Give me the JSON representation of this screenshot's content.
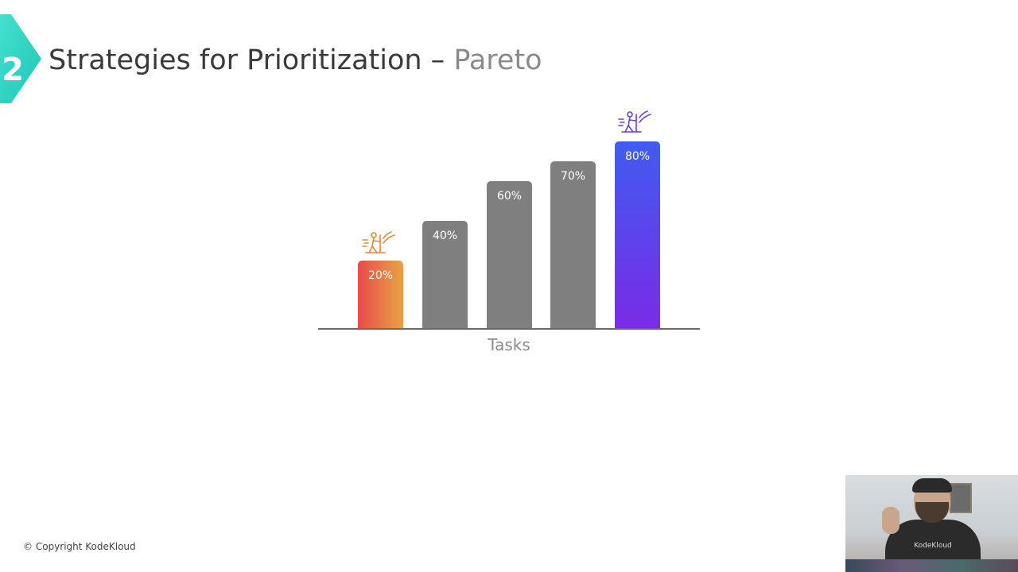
{
  "slide": {
    "section_number": "2",
    "title_main": "Strategies for Prioritization – ",
    "title_accent": "Pareto",
    "copyright": "© Copyright KodeKloud",
    "badge_color": "#2ed8c3"
  },
  "video": {
    "shirt_logo_text": "KodeKloud"
  },
  "icons": [
    "person-pushing-icon-orange",
    "person-pushing-icon-purple"
  ],
  "chart_data": {
    "type": "bar",
    "categories": [
      "",
      "",
      "",
      "",
      ""
    ],
    "values": [
      20,
      40,
      60,
      70,
      80
    ],
    "data_labels": [
      "20%",
      "40%",
      "60%",
      "70%",
      "80%"
    ],
    "xlabel": "Tasks",
    "ylabel": "",
    "ylim": [
      0,
      100
    ],
    "grid": false,
    "bar_colors": [
      "gradient-orange",
      "#7f7f7f",
      "#7f7f7f",
      "#7f7f7f",
      "gradient-purple"
    ],
    "gradient_orange": [
      "#e84b4b",
      "#e8a345"
    ],
    "gradient_purple": [
      "#3f5cf0",
      "#7a2be6"
    ]
  }
}
